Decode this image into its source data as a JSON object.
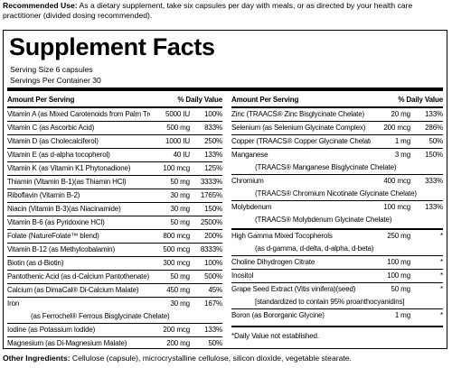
{
  "recommended_use": {
    "label": "Recommended Use:",
    "text": " As a dietary supplement, take six capsules per day with meals, or as directed by your health care practitioner (divided dosing recommended)."
  },
  "facts": {
    "title": "Supplement Facts",
    "serving_size": "Serving Size 6 capsules",
    "servings_per_container": "Servings Per Container 30",
    "left_table": {
      "header": {
        "amount": "Amount Per Serving",
        "dv": "% Daily Value"
      },
      "rows": [
        {
          "name": "Vitamin A (as Mixed Carotenoids from Palm Tree Fruit)",
          "amount": "5000 IU",
          "dv": "100%"
        },
        {
          "name": "Vitamin C (as Ascorbic Acid)",
          "amount": "500 mg",
          "dv": "833%"
        },
        {
          "name": "Vitamin D (as Cholecalciferol)",
          "amount": "1000 IU",
          "dv": "250%"
        },
        {
          "name": "Vitamin E (as d-alpha tocopherol)",
          "amount": "40 IU",
          "dv": "133%"
        },
        {
          "name": "Vitamin K (as Vitamin K1 Phytonadione)",
          "amount": "100 mcg",
          "dv": "125%"
        },
        {
          "name": "Thiamin (Vitamin B-1)(as Thiamin HCl)",
          "amount": "50 mg",
          "dv": "3333%"
        },
        {
          "name": "Riboflavin (Vitamin B-2)",
          "amount": "30 mg",
          "dv": "1765%"
        },
        {
          "name": "Niacin (Vitamin B-3)(as Niacinamide)",
          "amount": "30 mg",
          "dv": "150%"
        },
        {
          "name": "Vitamin B-6 (as Pyridoxine HCl)",
          "amount": "50 mg",
          "dv": "2500%"
        },
        {
          "name": "Folate (NatureFolate™ blend)",
          "amount": "800 mcg",
          "dv": "200%"
        },
        {
          "name": "Vitamin B-12 (as Methylcobalamin)",
          "amount": "500 mcg",
          "dv": "8333%"
        },
        {
          "name": "Biotin (as d-Biotin)",
          "amount": "300 mcg",
          "dv": "100%"
        },
        {
          "name": "Pantothenic Acid (as d-Calcium Pantothenate)",
          "amount": "50 mg",
          "dv": "500%"
        },
        {
          "name": "Calcium (as DimaCal® Di-Calcium Malate)",
          "amount": "450 mg",
          "dv": "45%"
        },
        {
          "name": "Iron",
          "amount": "30 mg",
          "dv": "167%",
          "sub": "(as Ferrochel® Ferrous Bisglycinate Chelate)"
        },
        {
          "name": "Iodine (as Potassium Iodide)",
          "amount": "200 mcg",
          "dv": "133%"
        },
        {
          "name": "Magnesium (as Di-Magnesium Malate)",
          "amount": "200 mg",
          "dv": "50%"
        }
      ]
    },
    "right_table": {
      "header": {
        "amount": "Amount Per Serving",
        "dv": "% Daily Value"
      },
      "rows": [
        {
          "name": "Zinc (TRAACS® Zinc Bisglycinate Chelate)",
          "amount": "20 mg",
          "dv": "133%"
        },
        {
          "name": "Selenium (as Selenium Glycinate Complex)",
          "amount": "200 mcg",
          "dv": "286%"
        },
        {
          "name": "Copper (TRAACS® Copper Glycinate Chelate)",
          "amount": "1 mg",
          "dv": "50%"
        },
        {
          "name": "Manganese",
          "amount": "3 mg",
          "dv": "150%",
          "sub": "(TRAACS® Manganese Bisglycinate Chelate)"
        },
        {
          "name": "Chromium",
          "amount": "400 mcg",
          "dv": "333%",
          "sub": "(TRAACS® Chromium Nicotinate Glycinate Chelate)"
        },
        {
          "name": "Molybdenum",
          "amount": "100 mcg",
          "dv": "133%",
          "sub": "(TRAACS® Molybdenum Glycinate Chelate)"
        }
      ],
      "other_rows": [
        {
          "name": "High Gamma Mixed Tocopherols",
          "amount": "250 mg",
          "dv": "*",
          "sub": "(as d-gamma, d-delta, d-alpha, d-beta)"
        },
        {
          "name": "Choline  Dihydrogen Citrate",
          "amount": "100 mg",
          "dv": "*"
        },
        {
          "name": "Inositol",
          "amount": "100 mg",
          "dv": "*"
        },
        {
          "name": "Grape Seed Extract (Vitis vinifera)(seed)",
          "amount": "50 mg",
          "dv": "*",
          "sub": "[standardized to contain 95% proanthocyanidins]"
        },
        {
          "name": "Boron (as Bororganic Glycine)",
          "amount": "1 mg",
          "dv": "*"
        }
      ],
      "footnote": "*Daily Value not established."
    }
  },
  "other_ingredients": {
    "label": "Other Ingredients:",
    "text": " Cellulose (capsule), microcrystalline cellulose, silicon dioxide, vegetable stearate."
  }
}
